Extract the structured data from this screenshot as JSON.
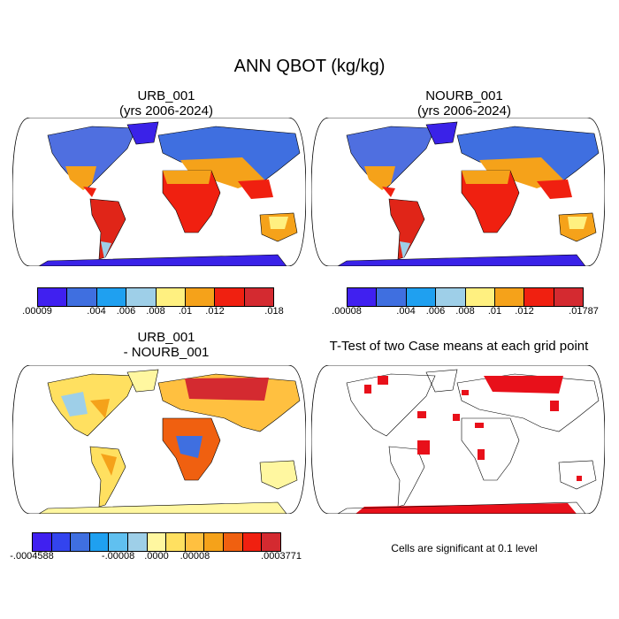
{
  "title": "ANN QBOT (kg/kg)",
  "panels": {
    "p1": {
      "line1": "URB_001",
      "line2": "(yrs 2006-2024)"
    },
    "p2": {
      "line1": "NOURB_001",
      "line2": "(yrs 2006-2024)"
    },
    "p3": {
      "line1": "URB_001",
      "line2": "- NOURB_001"
    },
    "p4": {
      "line1": "T-Test of two Case means at each grid point"
    }
  },
  "colorbars": {
    "cb1": {
      "colors": [
        "#4020f0",
        "#3f6fe0",
        "#1fa0f0",
        "#9ecfe8",
        "#fff080",
        "#f5a21a",
        "#f02010",
        "#d42a30"
      ],
      "labels": [
        ".00009",
        ".004",
        ".006",
        ".008",
        ".01",
        ".012",
        ".018"
      ]
    },
    "cb2": {
      "colors": [
        "#4020f0",
        "#3f6fe0",
        "#1fa0f0",
        "#9ecfe8",
        "#fff080",
        "#f5a21a",
        "#f02010",
        "#d42a30"
      ],
      "labels": [
        ".00008",
        ".004",
        ".006",
        ".008",
        ".01",
        ".012",
        ".01787"
      ]
    },
    "cb3": {
      "colors": [
        "#4020f0",
        "#3344ee",
        "#3f6fe0",
        "#1fa0f0",
        "#60c0f0",
        "#9ecfe8",
        "#fff7a0",
        "#ffe060",
        "#ffc040",
        "#f5a21a",
        "#f06010",
        "#f02010",
        "#d42a30"
      ],
      "labels": [
        "-.0004588",
        "-.00008",
        ".0000",
        ".00008",
        ".0003771"
      ]
    }
  },
  "note": "Cells are significant at 0.1 level",
  "colors": {
    "sig": "#e8101a",
    "ocean": "#ffffff",
    "outline": "#000000"
  }
}
